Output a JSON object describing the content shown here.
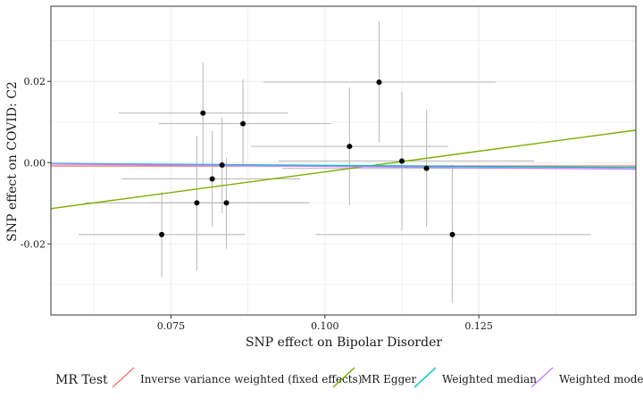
{
  "chart_data": {
    "type": "scatter",
    "title": "",
    "xlabel": "SNP effect on Bipolar Disorder",
    "ylabel": "SNP effect on COVID: C2",
    "xlim": [
      0.0555,
      0.1505
    ],
    "ylim": [
      -0.0375,
      0.0385
    ],
    "x_ticks": [
      0.075,
      0.1,
      0.125
    ],
    "x_tick_labels": [
      "0.075",
      "0.100",
      "0.125"
    ],
    "y_ticks": [
      -0.02,
      0.0,
      0.02
    ],
    "y_tick_labels": [
      "-0.02",
      "0.00",
      "0.02"
    ],
    "grid": true,
    "points": [
      {
        "x": 0.0735,
        "y": -0.0177,
        "x_lo": 0.06,
        "x_hi": 0.087,
        "y_lo": -0.0282,
        "y_hi": -0.0072
      },
      {
        "x": 0.0792,
        "y": -0.0099,
        "x_lo": 0.061,
        "x_hi": 0.0975,
        "y_lo": -0.0265,
        "y_hi": 0.0066
      },
      {
        "x": 0.0802,
        "y": 0.0122,
        "x_lo": 0.0665,
        "x_hi": 0.094,
        "y_lo": -0.0004,
        "y_hi": 0.0248
      },
      {
        "x": 0.0817,
        "y": -0.004,
        "x_lo": 0.067,
        "x_hi": 0.096,
        "y_lo": -0.0158,
        "y_hi": 0.0078
      },
      {
        "x": 0.0833,
        "y": -0.0006,
        "x_lo": 0.07,
        "x_hi": 0.0965,
        "y_lo": -0.0124,
        "y_hi": 0.0112
      },
      {
        "x": 0.084,
        "y": -0.0099,
        "x_lo": 0.0715,
        "x_hi": 0.0965,
        "y_lo": -0.0212,
        "y_hi": 0.0012
      },
      {
        "x": 0.0867,
        "y": 0.0096,
        "x_lo": 0.073,
        "x_hi": 0.101,
        "y_lo": -0.0008,
        "y_hi": 0.0205
      },
      {
        "x": 0.104,
        "y": 0.004,
        "x_lo": 0.088,
        "x_hi": 0.12,
        "y_lo": -0.0105,
        "y_hi": 0.0185
      },
      {
        "x": 0.1088,
        "y": 0.0198,
        "x_lo": 0.09,
        "x_hi": 0.1277,
        "y_lo": 0.005,
        "y_hi": 0.0348
      },
      {
        "x": 0.1125,
        "y": 0.0004,
        "x_lo": 0.0925,
        "x_hi": 0.134,
        "y_lo": -0.0168,
        "y_hi": 0.0175
      },
      {
        "x": 0.1165,
        "y": -0.0014,
        "x_lo": 0.093,
        "x_hi": 0.1335,
        "y_lo": -0.0158,
        "y_hi": 0.013
      },
      {
        "x": 0.1207,
        "y": -0.0177,
        "x_lo": 0.0985,
        "x_hi": 0.1432,
        "y_lo": -0.0345,
        "y_hi": -0.0005
      }
    ],
    "lines": [
      {
        "name": "Inverse variance weighted (fixed effects)",
        "color": "#F8766D",
        "intercept": -0.00083,
        "slope": 0.0
      },
      {
        "name": "MR Egger",
        "color": "#7CAE00",
        "intercept": -0.0226,
        "slope": 0.2033
      },
      {
        "name": "Weighted median",
        "color": "#00BFC4",
        "intercept": 0.0004,
        "slope": -0.0108
      },
      {
        "name": "Weighted mode",
        "color": "#C77CFF",
        "intercept": 0.0004,
        "slope": -0.0133
      }
    ],
    "legend": {
      "title": "MR Test",
      "position": "bottom",
      "entries": [
        "Inverse variance weighted (fixed effects)",
        "MR Egger",
        "Weighted median",
        "Weighted mode"
      ]
    }
  }
}
